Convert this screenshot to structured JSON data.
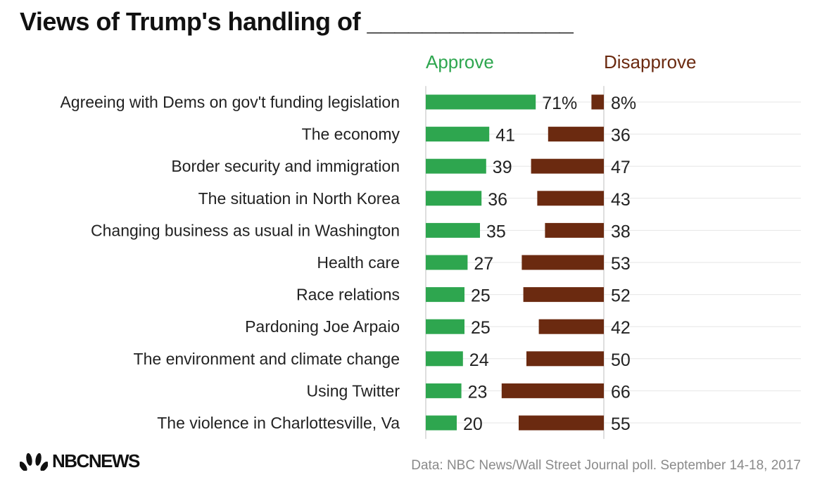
{
  "title": "Views of Trump's handling of _______________",
  "logo_text": "NBCNEWS",
  "source": "Data: NBC News/Wall Street Journal poll. September 14-18, 2017",
  "colors": {
    "approve": "#2ea64f",
    "disapprove": "#6b2a10"
  },
  "chart_data": {
    "type": "bar",
    "title": "Views of Trump's handling of _______________",
    "categories": [
      "Agreeing with Dems on gov't funding legislation",
      "The economy",
      "Border security and immigration ",
      "The situation in North Korea",
      "Changing business as usual in Washington",
      "Health care",
      "Race relations",
      "Pardoning Joe Arpaio",
      "The environment and climate change",
      "Using Twitter",
      "The violence in Charlottesville, Va"
    ],
    "series": [
      {
        "name": "Approve",
        "values": [
          71,
          41,
          39,
          36,
          35,
          27,
          25,
          25,
          24,
          23,
          20
        ],
        "labels": [
          "71%",
          "41",
          "39",
          "36",
          "35",
          "27",
          "25",
          "25",
          "24",
          "23",
          "20"
        ]
      },
      {
        "name": "Disapprove",
        "values": [
          8,
          36,
          47,
          43,
          38,
          53,
          52,
          42,
          50,
          66,
          55
        ],
        "labels": [
          "8%",
          "36",
          "47",
          "43",
          "38",
          "53",
          "52",
          "42",
          "50",
          "66",
          "55"
        ]
      }
    ],
    "legend": "top",
    "grid": true
  }
}
